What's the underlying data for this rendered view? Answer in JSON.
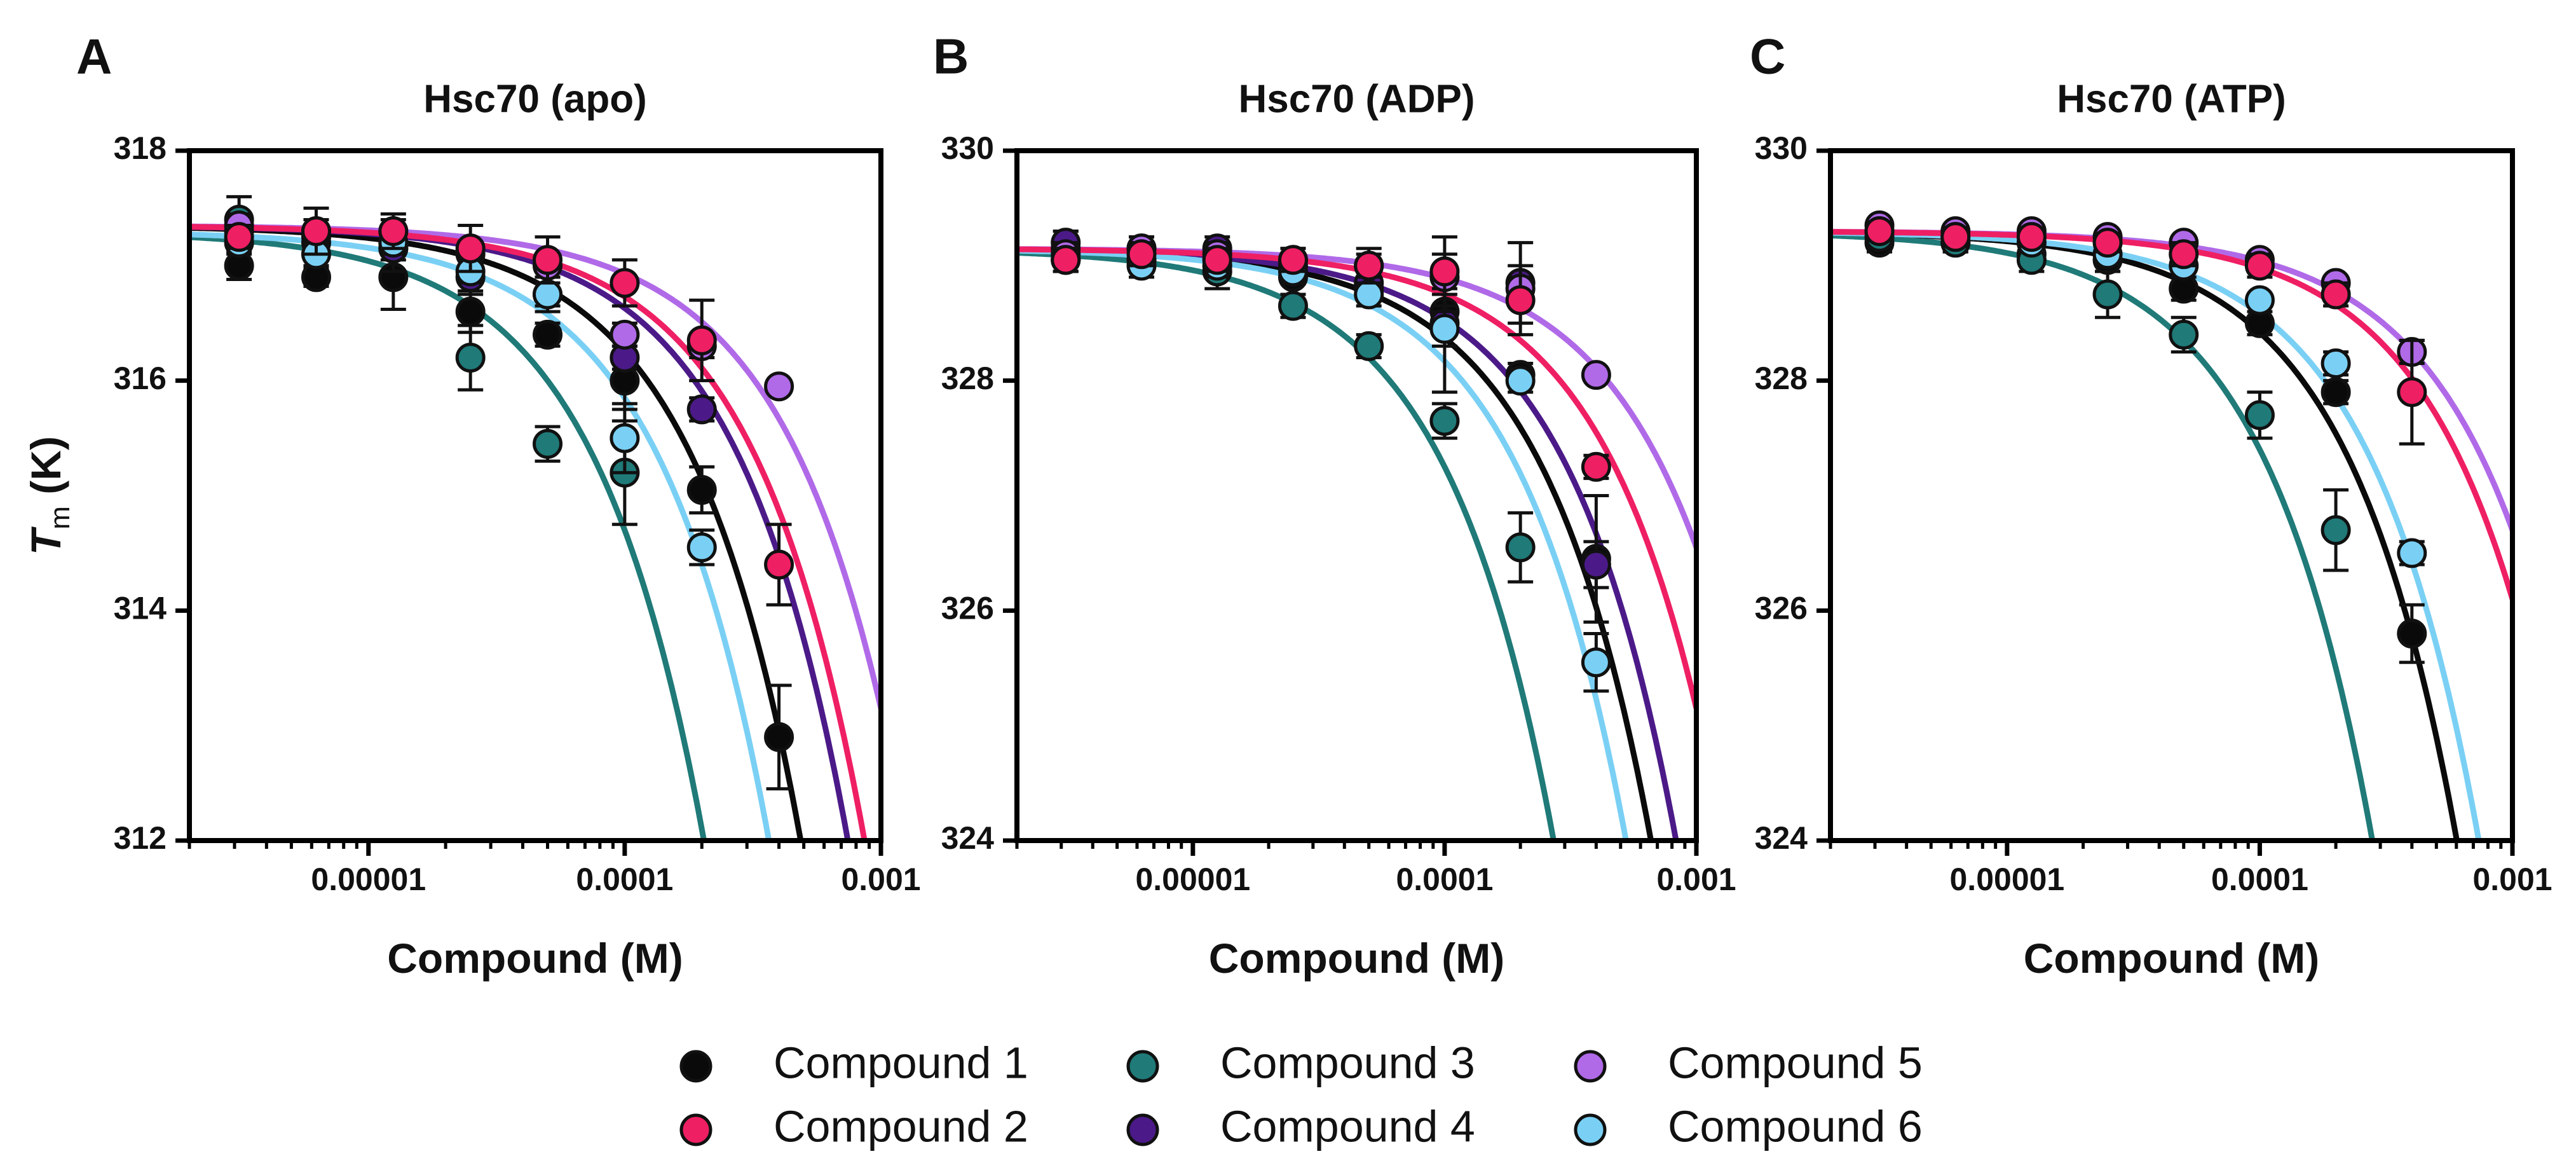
{
  "figure": {
    "y_axis_title": "T",
    "y_axis_subscript": "m",
    "y_axis_unit": " (K)"
  },
  "legend": {
    "items": [
      {
        "label": "Compound 1",
        "color": "#0a0a0a"
      },
      {
        "label": "Compound 2",
        "color": "#ef1f63"
      },
      {
        "label": "Compound 3",
        "color": "#1f7a78"
      },
      {
        "label": "Compound 4",
        "color": "#4b1a88"
      },
      {
        "label": "Compound 5",
        "color": "#b06ae8"
      },
      {
        "label": "Compound 6",
        "color": "#7ad0f4"
      }
    ]
  },
  "chart_data": [
    {
      "panel": "A",
      "type": "scatter",
      "title": "Hsc70 (apo)",
      "xlabel": "Compound (M)",
      "ylabel": "Tm (K)",
      "x_scale": "log",
      "xlim": [
        2e-06,
        0.001
      ],
      "ylim": [
        312,
        318
      ],
      "x_ticks": [
        1e-05,
        0.0001,
        0.001
      ],
      "x_tick_labels": [
        "0.00001",
        "0.0001",
        "0.001"
      ],
      "y_ticks": [
        312,
        314,
        316,
        318
      ],
      "y_tick_labels": [
        "312",
        "314",
        "316",
        "318"
      ],
      "x": [
        3.125e-06,
        6.25e-06,
        1.25e-05,
        2.5e-05,
        5e-05,
        0.0001,
        0.0002,
        0.0004
      ],
      "series": [
        {
          "name": "Compound 1",
          "color": "#0a0a0a",
          "values": [
            317.0,
            316.9,
            316.9,
            316.6,
            316.4,
            316.0,
            315.05,
            312.9
          ],
          "errors": [
            0.12,
            0.08,
            0.28,
            0.18,
            0.1,
            0.25,
            0.2,
            0.45
          ],
          "fit": {
            "top": 317.35,
            "k": 11000
          }
        },
        {
          "name": "Compound 2",
          "color": "#ef1f63",
          "values": [
            317.25,
            317.3,
            317.3,
            317.15,
            317.05,
            316.85,
            316.35,
            314.4
          ],
          "errors": [
            0.1,
            0.2,
            0.15,
            0.2,
            0.2,
            0.2,
            0.35,
            0.35
          ],
          "fit": {
            "top": 317.35,
            "k": 6200
          }
        },
        {
          "name": "Compound 3",
          "color": "#1f7a78",
          "values": [
            317.4,
            317.2,
            317.15,
            316.2,
            315.45,
            315.2,
            null,
            null
          ],
          "errors": [
            0.2,
            0.2,
            0.2,
            0.28,
            0.15,
            0.45,
            0,
            0
          ],
          "fit": {
            "top": 317.3,
            "k": 26000
          }
        },
        {
          "name": "Compound 4",
          "color": "#4b1a88",
          "values": [
            317.3,
            317.25,
            317.15,
            316.9,
            316.75,
            316.2,
            315.75,
            null
          ],
          "errors": [
            0.08,
            0.1,
            0.1,
            0.15,
            0.15,
            0.1,
            0.1,
            0
          ],
          "fit": {
            "top": 317.35,
            "k": 7200
          }
        },
        {
          "name": "Compound 5",
          "color": "#b06ae8",
          "values": [
            317.35,
            317.3,
            317.3,
            317.1,
            317.0,
            316.4,
            316.3,
            315.95
          ],
          "errors": [
            0.1,
            0.1,
            0.1,
            0.1,
            0.1,
            0.1,
            0.1,
            0.05
          ],
          "fit": {
            "top": 317.35,
            "k": 4200
          }
        },
        {
          "name": "Compound 6",
          "color": "#7ad0f4",
          "values": [
            317.2,
            317.1,
            317.2,
            316.95,
            316.75,
            315.5,
            314.55,
            null
          ],
          "errors": [
            0.1,
            0.1,
            0.1,
            0.1,
            0.1,
            0.3,
            0.15,
            0
          ],
          "fit": {
            "top": 317.3,
            "k": 14500
          }
        }
      ]
    },
    {
      "panel": "B",
      "type": "scatter",
      "title": "Hsc70 (ADP)",
      "xlabel": "Compound (M)",
      "ylabel": "",
      "x_scale": "log",
      "xlim": [
        2e-06,
        0.001
      ],
      "ylim": [
        324,
        330
      ],
      "x_ticks": [
        1e-05,
        0.0001,
        0.001
      ],
      "x_tick_labels": [
        "0.00001",
        "0.0001",
        "0.001"
      ],
      "y_ticks": [
        324,
        326,
        328,
        330
      ],
      "y_tick_labels": [
        "324",
        "326",
        "328",
        "330"
      ],
      "x": [
        3.125e-06,
        6.25e-06,
        1.25e-05,
        2.5e-05,
        5e-05,
        0.0001,
        0.0002,
        0.0004
      ],
      "series": [
        {
          "name": "Compound 1",
          "color": "#0a0a0a",
          "values": [
            329.05,
            329.05,
            329.05,
            328.9,
            328.8,
            328.6,
            328.05,
            326.45
          ],
          "errors": [
            0.1,
            0.1,
            0.1,
            0.15,
            0.1,
            0.15,
            0.1,
            0.55
          ],
          "fit": {
            "top": 329.15,
            "k": 7800
          }
        },
        {
          "name": "Compound 2",
          "color": "#ef1f63",
          "values": [
            329.05,
            329.1,
            329.05,
            329.05,
            329.0,
            328.95,
            328.7,
            327.25
          ],
          "errors": [
            0.1,
            0.1,
            0.1,
            0.1,
            0.15,
            0.3,
            0.3,
            0.1
          ],
          "fit": {
            "top": 329.15,
            "k": 4000
          }
        },
        {
          "name": "Compound 3",
          "color": "#1f7a78",
          "values": [
            329.15,
            329.05,
            328.95,
            328.65,
            328.3,
            327.65,
            326.55,
            null
          ],
          "errors": [
            0.15,
            0.1,
            0.15,
            0.1,
            0.1,
            0.15,
            0.3,
            0
          ],
          "fit": {
            "top": 329.15,
            "k": 19000
          }
        },
        {
          "name": "Compound 4",
          "color": "#4b1a88",
          "values": [
            329.2,
            329.15,
            329.15,
            329.0,
            328.85,
            328.5,
            328.85,
            326.4
          ],
          "errors": [
            0.1,
            0.1,
            0.1,
            0.1,
            0.1,
            0.6,
            0.35,
            0.2
          ],
          "fit": {
            "top": 329.15,
            "k": 6200
          }
        },
        {
          "name": "Compound 5",
          "color": "#b06ae8",
          "values": [
            329.1,
            329.15,
            329.1,
            329.05,
            329.0,
            328.9,
            328.8,
            328.05
          ],
          "errors": [
            0.1,
            0.1,
            0.1,
            0.1,
            0.1,
            0.1,
            0.1,
            0.05
          ],
          "fit": {
            "top": 329.15,
            "k": 2600
          }
        },
        {
          "name": "Compound 6",
          "color": "#7ad0f4",
          "values": [
            329.05,
            329.0,
            329.0,
            328.95,
            328.75,
            328.45,
            328.0,
            325.55
          ],
          "errors": [
            0.1,
            0.1,
            0.1,
            0.1,
            0.1,
            0.15,
            0.1,
            0.25
          ],
          "fit": {
            "top": 329.15,
            "k": 9800
          }
        }
      ]
    },
    {
      "panel": "C",
      "type": "scatter",
      "title": "Hsc70 (ATP)",
      "xlabel": "Compound (M)",
      "ylabel": "",
      "x_scale": "log",
      "xlim": [
        2e-06,
        0.001
      ],
      "ylim": [
        324,
        330
      ],
      "x_ticks": [
        1e-05,
        0.0001,
        0.001
      ],
      "x_tick_labels": [
        "0.00001",
        "0.0001",
        "0.001"
      ],
      "y_ticks": [
        324,
        326,
        328,
        330
      ],
      "y_tick_labels": [
        "324",
        "326",
        "328",
        "330"
      ],
      "x": [
        3.125e-06,
        6.25e-06,
        1.25e-05,
        2.5e-05,
        5e-05,
        0.0001,
        0.0002,
        0.0004
      ],
      "series": [
        {
          "name": "Compound 1",
          "color": "#0a0a0a",
          "values": [
            329.2,
            329.2,
            329.1,
            329.05,
            328.8,
            328.5,
            327.9,
            325.8
          ],
          "errors": [
            0.08,
            0.08,
            0.08,
            0.1,
            0.1,
            0.1,
            0.1,
            0.25
          ],
          "fit": {
            "top": 329.3,
            "k": 8800
          }
        },
        {
          "name": "Compound 2",
          "color": "#ef1f63",
          "values": [
            329.3,
            329.25,
            329.25,
            329.2,
            329.1,
            329.0,
            328.75,
            327.9
          ],
          "errors": [
            0.08,
            0.08,
            0.08,
            0.08,
            0.1,
            0.1,
            0.1,
            0.45
          ],
          "fit": {
            "top": 329.3,
            "k": 3200
          }
        },
        {
          "name": "Compound 3",
          "color": "#1f7a78",
          "values": [
            329.25,
            329.2,
            329.05,
            328.75,
            328.4,
            327.7,
            326.7,
            null
          ],
          "errors": [
            0.08,
            0.08,
            0.1,
            0.2,
            0.15,
            0.2,
            0.35,
            0
          ],
          "fit": {
            "top": 329.3,
            "k": 19000
          }
        },
        {
          "name": "Compound 4",
          "color": "#4b1a88",
          "values": [
            null,
            null,
            null,
            null,
            null,
            null,
            null,
            null
          ],
          "errors": [
            0,
            0,
            0,
            0,
            0,
            0,
            0,
            0
          ],
          "fit": null
        },
        {
          "name": "Compound 5",
          "color": "#b06ae8",
          "values": [
            329.35,
            329.3,
            329.3,
            329.25,
            329.2,
            329.05,
            328.85,
            328.25
          ],
          "errors": [
            0.05,
            0.05,
            0.05,
            0.05,
            0.05,
            0.05,
            0.05,
            0.1
          ],
          "fit": {
            "top": 329.3,
            "k": 2600
          }
        },
        {
          "name": "Compound 6",
          "color": "#7ad0f4",
          "values": [
            329.3,
            329.25,
            329.2,
            329.1,
            329.0,
            328.7,
            328.15,
            326.5
          ],
          "errors": [
            0.05,
            0.05,
            0.05,
            0.05,
            0.05,
            0.05,
            0.1,
            0.1
          ],
          "fit": {
            "top": 329.3,
            "k": 7200
          }
        }
      ]
    }
  ]
}
